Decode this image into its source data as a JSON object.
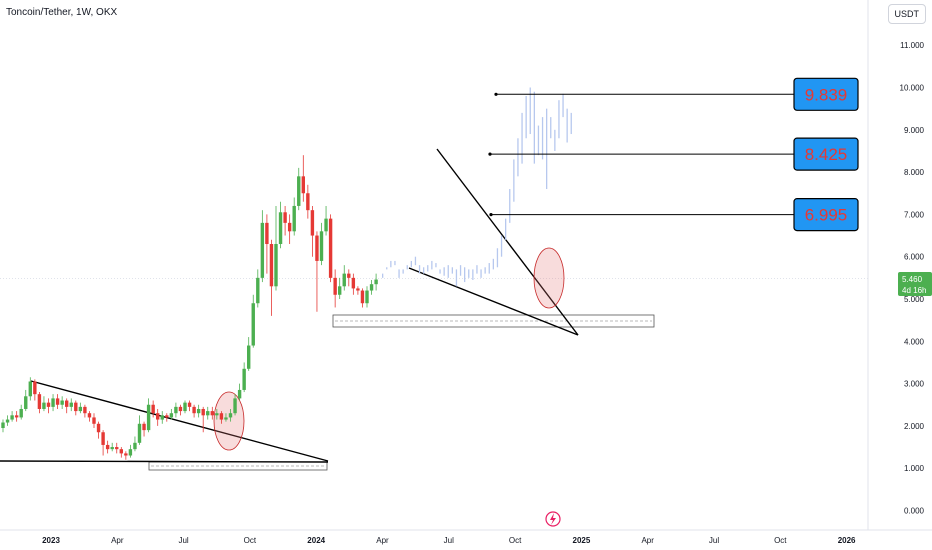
{
  "header": {
    "symbol_title": "Toncoin/Tether, 1W, OKX",
    "currency": "USDT"
  },
  "colors": {
    "up": "#4caf50",
    "down": "#e53935",
    "projection": "#b7c8ee",
    "target_box": "#2196f3",
    "target_text": "#e53935",
    "price_tag": "#4caf50"
  },
  "chart_data": {
    "type": "candlestick",
    "y_ticks": [
      "0.000",
      "1.000",
      "2.000",
      "3.000",
      "4.000",
      "5.000",
      "6.000",
      "7.000",
      "8.000",
      "9.000",
      "10.000",
      "11.000"
    ],
    "ylim": [
      0,
      11.4
    ],
    "x_ticks": [
      {
        "label": "2023",
        "t": 0,
        "bold": true
      },
      {
        "label": "Apr",
        "t": 13,
        "bold": false
      },
      {
        "label": "Jul",
        "t": 26,
        "bold": false
      },
      {
        "label": "Oct",
        "t": 39,
        "bold": false
      },
      {
        "label": "2024",
        "t": 52,
        "bold": true
      },
      {
        "label": "Apr",
        "t": 65,
        "bold": false
      },
      {
        "label": "Jul",
        "t": 78,
        "bold": false
      },
      {
        "label": "Oct",
        "t": 91,
        "bold": false
      },
      {
        "label": "2025",
        "t": 104,
        "bold": true
      },
      {
        "label": "Apr",
        "t": 117,
        "bold": false
      },
      {
        "label": "Jul",
        "t": 130,
        "bold": false
      },
      {
        "label": "Oct",
        "t": 143,
        "bold": false
      },
      {
        "label": "2026",
        "t": 156,
        "bold": true
      }
    ],
    "current_price": {
      "value": "5.460",
      "countdown": "4d 16h"
    },
    "targets": [
      {
        "label": "9.839",
        "value": 9.839
      },
      {
        "label": "8.425",
        "value": 8.425
      },
      {
        "label": "6.995",
        "value": 6.995
      }
    ],
    "candles": [
      [
        1.95,
        2.08,
        2.15,
        1.85
      ],
      [
        2.08,
        2.15,
        2.25,
        2.0
      ],
      [
        2.15,
        2.25,
        2.35,
        2.1
      ],
      [
        2.25,
        2.2,
        2.35,
        2.1
      ],
      [
        2.2,
        2.4,
        2.5,
        2.15
      ],
      [
        2.4,
        2.7,
        2.85,
        2.35
      ],
      [
        2.7,
        3.05,
        3.15,
        2.6
      ],
      [
        3.05,
        2.75,
        3.1,
        2.6
      ],
      [
        2.75,
        2.4,
        2.8,
        2.3
      ],
      [
        2.4,
        2.55,
        2.7,
        2.35
      ],
      [
        2.55,
        2.45,
        2.65,
        2.3
      ],
      [
        2.45,
        2.65,
        2.75,
        2.35
      ],
      [
        2.65,
        2.5,
        2.75,
        2.4
      ],
      [
        2.5,
        2.6,
        2.7,
        2.4
      ],
      [
        2.6,
        2.45,
        2.65,
        2.3
      ],
      [
        2.45,
        2.55,
        2.65,
        2.35
      ],
      [
        2.55,
        2.35,
        2.6,
        2.25
      ],
      [
        2.35,
        2.45,
        2.55,
        2.3
      ],
      [
        2.45,
        2.3,
        2.5,
        2.2
      ],
      [
        2.3,
        2.2,
        2.35,
        2.1
      ],
      [
        2.2,
        2.05,
        2.3,
        1.95
      ],
      [
        2.05,
        1.85,
        2.1,
        1.7
      ],
      [
        1.85,
        1.55,
        1.9,
        1.3
      ],
      [
        1.55,
        1.45,
        1.65,
        1.35
      ],
      [
        1.45,
        1.5,
        1.6,
        1.4
      ],
      [
        1.5,
        1.45,
        1.6,
        1.35
      ],
      [
        1.45,
        1.35,
        1.5,
        1.25
      ],
      [
        1.35,
        1.3,
        1.4,
        1.2
      ],
      [
        1.3,
        1.45,
        1.55,
        1.25
      ],
      [
        1.45,
        1.6,
        1.75,
        1.4
      ],
      [
        1.6,
        2.05,
        2.25,
        1.55
      ],
      [
        2.05,
        1.9,
        2.1,
        1.75
      ],
      [
        1.9,
        2.5,
        2.65,
        1.85
      ],
      [
        2.5,
        2.3,
        2.6,
        2.2
      ],
      [
        2.3,
        2.15,
        2.4,
        2.0
      ],
      [
        2.15,
        2.25,
        2.35,
        2.05
      ],
      [
        2.25,
        2.2,
        2.3,
        2.1
      ],
      [
        2.2,
        2.3,
        2.4,
        2.15
      ],
      [
        2.3,
        2.45,
        2.55,
        2.2
      ],
      [
        2.45,
        2.35,
        2.5,
        2.25
      ],
      [
        2.35,
        2.55,
        2.6,
        2.3
      ],
      [
        2.55,
        2.45,
        2.6,
        2.35
      ],
      [
        2.45,
        2.3,
        2.5,
        2.2
      ],
      [
        2.3,
        2.4,
        2.5,
        2.2
      ],
      [
        2.4,
        2.25,
        2.45,
        1.85
      ],
      [
        2.25,
        2.35,
        2.45,
        2.15
      ],
      [
        2.35,
        2.25,
        2.45,
        2.15
      ],
      [
        2.25,
        2.3,
        2.4,
        2.15
      ],
      [
        2.3,
        2.15,
        2.35,
        2.05
      ],
      [
        2.15,
        2.2,
        2.3,
        2.1
      ],
      [
        2.2,
        2.3,
        2.4,
        2.1
      ],
      [
        2.3,
        2.65,
        2.75,
        2.25
      ],
      [
        2.65,
        2.85,
        3.0,
        2.6
      ],
      [
        2.85,
        3.35,
        3.5,
        2.8
      ],
      [
        3.35,
        3.9,
        4.1,
        3.3
      ],
      [
        3.9,
        4.9,
        5.1,
        3.85
      ],
      [
        4.9,
        5.5,
        5.7,
        4.8
      ],
      [
        5.5,
        6.8,
        7.1,
        5.4
      ],
      [
        6.8,
        6.3,
        7.0,
        5.6
      ],
      [
        6.3,
        5.3,
        6.4,
        4.6
      ],
      [
        5.3,
        6.3,
        7.2,
        5.2
      ],
      [
        6.3,
        7.05,
        7.3,
        6.2
      ],
      [
        7.05,
        6.8,
        7.2,
        6.5
      ],
      [
        6.8,
        6.6,
        7.0,
        6.3
      ],
      [
        6.6,
        7.2,
        7.4,
        6.5
      ],
      [
        7.2,
        7.9,
        8.1,
        7.1
      ],
      [
        7.9,
        7.5,
        8.4,
        7.3
      ],
      [
        7.5,
        7.1,
        7.7,
        6.9
      ],
      [
        7.1,
        6.5,
        7.2,
        6.0
      ],
      [
        6.5,
        5.9,
        6.6,
        4.7
      ],
      [
        5.9,
        6.6,
        6.8,
        5.8
      ],
      [
        6.6,
        6.9,
        7.2,
        6.5
      ],
      [
        6.9,
        5.5,
        7.0,
        5.4
      ],
      [
        5.5,
        5.1,
        5.7,
        4.8
      ],
      [
        5.1,
        5.3,
        5.5,
        5.0
      ],
      [
        5.3,
        5.6,
        5.8,
        5.2
      ],
      [
        5.6,
        5.5,
        5.7,
        5.3
      ],
      [
        5.5,
        5.25,
        5.6,
        5.1
      ],
      [
        5.25,
        5.2,
        5.3,
        5.1
      ],
      [
        5.2,
        4.9,
        5.25,
        4.8
      ],
      [
        4.9,
        5.2,
        5.3,
        4.8
      ],
      [
        5.2,
        5.35,
        5.45,
        5.1
      ],
      [
        5.35,
        5.46,
        5.6,
        5.2
      ]
    ],
    "projection": [
      [
        5.5,
        5.6
      ],
      [
        5.7,
        5.75
      ],
      [
        5.75,
        5.9
      ],
      [
        5.8,
        5.9
      ],
      [
        5.5,
        5.7
      ],
      [
        5.6,
        5.7
      ],
      [
        5.7,
        5.8
      ],
      [
        5.75,
        5.9
      ],
      [
        5.8,
        6.0
      ],
      [
        5.6,
        5.8
      ],
      [
        5.6,
        5.75
      ],
      [
        5.65,
        5.8
      ],
      [
        5.7,
        5.9
      ],
      [
        5.75,
        5.85
      ],
      [
        5.6,
        5.7
      ],
      [
        5.55,
        5.75
      ],
      [
        5.5,
        5.8
      ],
      [
        5.6,
        5.75
      ],
      [
        5.3,
        5.7
      ],
      [
        5.55,
        5.8
      ],
      [
        5.4,
        5.75
      ],
      [
        5.5,
        5.7
      ],
      [
        5.45,
        5.7
      ],
      [
        5.6,
        5.8
      ],
      [
        5.5,
        5.7
      ],
      [
        5.6,
        5.75
      ],
      [
        5.6,
        5.85
      ],
      [
        5.7,
        5.95
      ],
      [
        5.75,
        6.2
      ],
      [
        6.0,
        6.5
      ],
      [
        6.4,
        6.9
      ],
      [
        6.8,
        7.6
      ],
      [
        7.3,
        8.3
      ],
      [
        7.9,
        8.8
      ],
      [
        8.2,
        9.4
      ],
      [
        8.8,
        9.8
      ],
      [
        8.9,
        10.0
      ],
      [
        8.2,
        9.9
      ],
      [
        8.4,
        9.1
      ],
      [
        8.3,
        9.3
      ],
      [
        7.6,
        9.5
      ],
      [
        8.8,
        9.3
      ],
      [
        8.5,
        9.0
      ],
      [
        8.8,
        9.7
      ],
      [
        9.3,
        9.85
      ],
      [
        8.7,
        9.5
      ],
      [
        8.9,
        9.4
      ]
    ]
  }
}
